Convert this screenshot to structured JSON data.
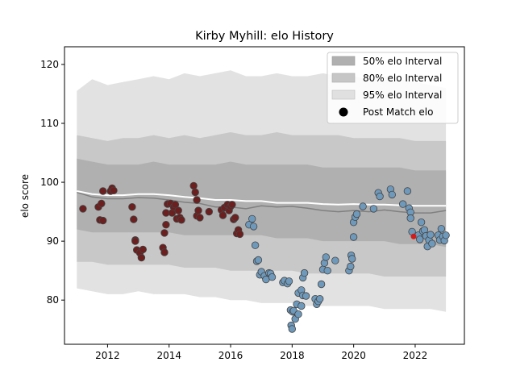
{
  "chart_data": {
    "type": "scatter",
    "title": "Kirby Myhill: elo History",
    "xlabel": "",
    "ylabel": "elo score",
    "xlim": [
      2010.6,
      2023.6
    ],
    "ylim": [
      72.5,
      123
    ],
    "x_ticks": [
      2012,
      2014,
      2016,
      2018,
      2020,
      2022
    ],
    "x_tick_labels": [
      "2012",
      "2014",
      "2016",
      "2018",
      "2020",
      "2022"
    ],
    "y_ticks": [
      80,
      90,
      100,
      110,
      120
    ],
    "y_tick_labels": [
      "80",
      "90",
      "100",
      "110",
      "120"
    ],
    "grid": false,
    "legend_position": "top-right",
    "legend": [
      {
        "label": "50% elo Interval",
        "kind": "patch",
        "color": "#b0b0b0"
      },
      {
        "label": "80% elo Interval",
        "kind": "patch",
        "color": "#c6c6c6"
      },
      {
        "label": "95% elo Interval",
        "kind": "patch",
        "color": "#e0e0e0"
      },
      {
        "label": "Post Match elo",
        "kind": "marker",
        "color": "#000000"
      }
    ],
    "colors": {
      "band50": "#b0b0b0",
      "band80": "#c8c8c8",
      "band95": "#e2e2e2",
      "mean_line": "#ffffff",
      "median_line": "#808080",
      "early_points": "#6b1f1f",
      "late_points": "#6f99bb",
      "point_edge": "#444444",
      "highlight_point": "#d01c1c"
    },
    "bands": {
      "x": [
        2011.0,
        2011.5,
        2012.0,
        2012.5,
        2013.0,
        2013.5,
        2014.0,
        2014.5,
        2015.0,
        2015.5,
        2016.0,
        2016.5,
        2017.0,
        2017.5,
        2018.0,
        2018.5,
        2019.0,
        2019.5,
        2020.0,
        2020.5,
        2021.0,
        2021.5,
        2022.0,
        2022.5,
        2023.0
      ],
      "p95_upper": [
        115.5,
        117.5,
        116.5,
        117.0,
        117.5,
        118.0,
        117.5,
        118.5,
        118.0,
        118.5,
        119.0,
        118.0,
        118.0,
        118.5,
        118.0,
        118.0,
        118.5,
        118.0,
        118.0,
        117.5,
        118.0,
        117.5,
        117.0,
        116.5,
        116.0
      ],
      "p80_upper": [
        108.0,
        107.5,
        107.0,
        107.5,
        107.5,
        108.0,
        107.5,
        108.0,
        107.5,
        108.0,
        108.5,
        108.0,
        108.0,
        108.5,
        108.0,
        108.0,
        108.0,
        108.0,
        107.5,
        107.5,
        107.5,
        107.5,
        107.0,
        107.0,
        107.0
      ],
      "p50_upper": [
        104.0,
        103.5,
        103.0,
        103.0,
        103.0,
        103.5,
        103.0,
        103.0,
        103.0,
        103.0,
        103.5,
        103.0,
        103.0,
        103.0,
        103.0,
        103.0,
        102.5,
        102.5,
        102.5,
        102.5,
        102.5,
        102.5,
        102.0,
        102.0,
        102.0
      ],
      "mean": [
        98.5,
        98.0,
        97.8,
        97.8,
        98.0,
        98.0,
        97.8,
        97.5,
        97.3,
        97.0,
        97.0,
        96.8,
        96.8,
        96.5,
        96.5,
        96.5,
        96.3,
        96.2,
        96.3,
        96.2,
        96.2,
        96.1,
        96.0,
        96.0,
        96.0
      ],
      "median": [
        98.3,
        97.5,
        97.2,
        97.2,
        97.4,
        97.3,
        97.0,
        96.6,
        96.4,
        95.8,
        95.8,
        95.5,
        96.0,
        95.8,
        95.9,
        95.6,
        95.2,
        95.0,
        95.2,
        95.0,
        95.3,
        95.0,
        94.8,
        94.8,
        95.2
      ],
      "p50_lower": [
        92.0,
        91.5,
        91.5,
        91.5,
        91.5,
        91.5,
        91.5,
        91.0,
        91.0,
        91.0,
        91.0,
        91.0,
        91.0,
        90.5,
        90.5,
        90.5,
        90.0,
        90.0,
        90.0,
        90.0,
        90.0,
        89.5,
        89.5,
        89.5,
        89.0
      ],
      "p80_lower": [
        86.5,
        86.5,
        86.0,
        86.0,
        86.0,
        86.0,
        86.0,
        85.5,
        85.5,
        85.5,
        85.0,
        85.0,
        85.0,
        85.0,
        85.0,
        84.5,
        84.5,
        84.5,
        84.5,
        84.5,
        84.0,
        84.0,
        84.0,
        84.0,
        84.0
      ],
      "p95_lower": [
        82.0,
        81.5,
        81.0,
        81.0,
        81.5,
        81.0,
        81.0,
        81.0,
        80.5,
        80.5,
        80.0,
        80.0,
        79.5,
        79.5,
        79.5,
        79.0,
        79.0,
        79.0,
        79.0,
        79.0,
        78.5,
        78.5,
        78.5,
        78.5,
        78.0
      ]
    },
    "series": [
      {
        "group": "early",
        "points": [
          [
            2011.2,
            95.5
          ],
          [
            2011.7,
            95.8
          ],
          [
            2011.75,
            93.6
          ],
          [
            2011.8,
            96.4
          ],
          [
            2011.85,
            93.5
          ],
          [
            2011.85,
            98.5
          ],
          [
            2012.1,
            98.5
          ],
          [
            2012.15,
            99.0
          ],
          [
            2012.2,
            98.6
          ],
          [
            2012.8,
            95.8
          ],
          [
            2012.85,
            93.7
          ],
          [
            2012.9,
            90.2
          ],
          [
            2012.9,
            90.0
          ],
          [
            2012.95,
            88.5
          ],
          [
            2013.05,
            88.0
          ],
          [
            2013.1,
            87.2
          ],
          [
            2013.15,
            88.6
          ],
          [
            2013.8,
            88.9
          ],
          [
            2013.85,
            88.1
          ],
          [
            2013.85,
            91.4
          ],
          [
            2013.9,
            92.8
          ],
          [
            2013.9,
            94.8
          ],
          [
            2013.95,
            96.3
          ],
          [
            2014.05,
            96.4
          ],
          [
            2014.1,
            94.8
          ],
          [
            2014.15,
            95.8
          ],
          [
            2014.2,
            96.2
          ],
          [
            2014.25,
            93.8
          ],
          [
            2014.3,
            95.2
          ],
          [
            2014.35,
            94.0
          ],
          [
            2014.4,
            93.6
          ],
          [
            2014.8,
            99.4
          ],
          [
            2014.85,
            98.3
          ],
          [
            2014.9,
            97.0
          ],
          [
            2014.9,
            94.3
          ],
          [
            2014.95,
            95.2
          ],
          [
            2015.0,
            94.0
          ],
          [
            2015.3,
            95.0
          ],
          [
            2015.7,
            95.3
          ],
          [
            2015.75,
            94.4
          ],
          [
            2015.8,
            95.7
          ],
          [
            2015.9,
            96.2
          ],
          [
            2015.95,
            95.2
          ],
          [
            2016.0,
            95.9
          ],
          [
            2016.05,
            96.2
          ],
          [
            2016.1,
            93.7
          ],
          [
            2016.15,
            94.0
          ],
          [
            2016.2,
            91.3
          ],
          [
            2016.25,
            91.9
          ],
          [
            2016.3,
            91.2
          ]
        ]
      },
      {
        "group": "late",
        "points": [
          [
            2016.6,
            92.8
          ],
          [
            2016.7,
            93.8
          ],
          [
            2016.75,
            92.5
          ],
          [
            2016.8,
            89.3
          ],
          [
            2016.85,
            86.6
          ],
          [
            2016.9,
            86.8
          ],
          [
            2016.95,
            84.3
          ],
          [
            2017.0,
            84.8
          ],
          [
            2017.1,
            84.1
          ],
          [
            2017.15,
            83.5
          ],
          [
            2017.25,
            84.6
          ],
          [
            2017.3,
            84.5
          ],
          [
            2017.35,
            83.9
          ],
          [
            2017.7,
            83.0
          ],
          [
            2017.75,
            83.3
          ],
          [
            2017.85,
            82.8
          ],
          [
            2017.9,
            83.2
          ],
          [
            2017.95,
            78.3
          ],
          [
            2017.97,
            75.7
          ],
          [
            2018.0,
            75.1
          ],
          [
            2018.02,
            78.0
          ],
          [
            2018.05,
            78.2
          ],
          [
            2018.1,
            76.8
          ],
          [
            2018.15,
            79.3
          ],
          [
            2018.2,
            77.6
          ],
          [
            2018.2,
            81.2
          ],
          [
            2018.3,
            79.0
          ],
          [
            2018.3,
            81.7
          ],
          [
            2018.35,
            80.8
          ],
          [
            2018.35,
            83.8
          ],
          [
            2018.4,
            84.6
          ],
          [
            2018.45,
            80.7
          ],
          [
            2018.75,
            80.2
          ],
          [
            2018.8,
            79.3
          ],
          [
            2018.85,
            79.8
          ],
          [
            2018.9,
            80.2
          ],
          [
            2018.95,
            82.7
          ],
          [
            2019.0,
            85.2
          ],
          [
            2019.05,
            86.3
          ],
          [
            2019.1,
            87.3
          ],
          [
            2019.15,
            85.0
          ],
          [
            2019.4,
            86.7
          ],
          [
            2019.85,
            85.0
          ],
          [
            2019.9,
            85.7
          ],
          [
            2019.92,
            87.6
          ],
          [
            2019.95,
            87.0
          ],
          [
            2020.0,
            90.7
          ],
          [
            2020.0,
            93.2
          ],
          [
            2020.05,
            94.1
          ],
          [
            2020.1,
            94.6
          ],
          [
            2020.3,
            95.9
          ],
          [
            2020.65,
            95.5
          ],
          [
            2020.8,
            98.2
          ],
          [
            2020.85,
            97.6
          ],
          [
            2021.2,
            98.8
          ],
          [
            2021.25,
            97.9
          ],
          [
            2021.6,
            96.3
          ],
          [
            2021.75,
            98.5
          ],
          [
            2021.8,
            95.6
          ],
          [
            2021.85,
            94.9
          ],
          [
            2021.85,
            93.9
          ],
          [
            2021.9,
            91.6
          ],
          [
            2022.1,
            91.0
          ],
          [
            2022.15,
            90.3
          ],
          [
            2022.2,
            93.2
          ],
          [
            2022.25,
            91.7
          ],
          [
            2022.3,
            91.9
          ],
          [
            2022.35,
            90.9
          ],
          [
            2022.4,
            89.1
          ],
          [
            2022.45,
            90.2
          ],
          [
            2022.5,
            91.1
          ],
          [
            2022.55,
            89.6
          ],
          [
            2022.75,
            91.0
          ],
          [
            2022.8,
            90.2
          ],
          [
            2022.85,
            92.1
          ],
          [
            2022.9,
            90.8
          ],
          [
            2022.95,
            90.1
          ],
          [
            2023.0,
            91.0
          ]
        ]
      }
    ],
    "highlight_point": [
      2021.95,
      90.8
    ]
  }
}
